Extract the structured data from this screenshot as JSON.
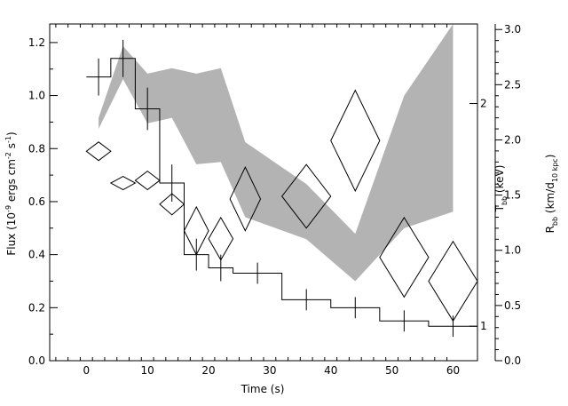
{
  "chart_data": {
    "type": "line",
    "xlabel": "Time (s)",
    "ylabel_parts": {
      "a": "Flux (10",
      "a_sup": "-9",
      "b": " ergs cm",
      "b_sup": "-2",
      "c": " s",
      "c_sup": "-1",
      "d": ")"
    },
    "t_label": {
      "main": "T",
      "sub": "bb",
      "rest": " (keV)"
    },
    "r_label": {
      "main": "R",
      "sub": "bb",
      "mid": " (km/d",
      "sub2": "10 kpc",
      "end": ")"
    },
    "xlim": [
      -6,
      64
    ],
    "ylim": [
      0,
      1.27
    ],
    "x_ticks": [
      "0",
      "10",
      "20",
      "30",
      "40",
      "50",
      "60"
    ],
    "x_tick_values": [
      0,
      10,
      20,
      30,
      40,
      50,
      60
    ],
    "y_ticks": [
      "0.0",
      "0.2",
      "0.4",
      "0.6",
      "0.8",
      "1.0",
      "1.2"
    ],
    "y_tick_values": [
      0,
      0.2,
      0.4,
      0.6,
      0.8,
      1.0,
      1.2
    ],
    "r_axis": {
      "lim": [
        0,
        3.05
      ],
      "ticks": [
        "0.0",
        "0.5",
        "1.0",
        "1.5",
        "2.0",
        "2.5",
        "3.0"
      ],
      "tick_values": [
        0,
        0.5,
        1.0,
        1.5,
        2.0,
        2.5,
        3.0
      ]
    },
    "t_axis": {
      "ticks": [
        "1",
        "2"
      ],
      "tick_values": [
        1,
        2
      ],
      "flux_equiv": [
        0.13,
        0.97
      ]
    },
    "flux": {
      "bins": [
        {
          "x0": 0,
          "x1": 4,
          "y": 1.07,
          "err": 0.07
        },
        {
          "x0": 4,
          "x1": 8,
          "y": 1.14,
          "err": 0.07
        },
        {
          "x0": 8,
          "x1": 12,
          "y": 0.95,
          "err": 0.08
        },
        {
          "x0": 12,
          "x1": 16,
          "y": 0.67,
          "err": 0.07
        },
        {
          "x0": 16,
          "x1": 20,
          "y": 0.4,
          "err": 0.06
        },
        {
          "x0": 20,
          "x1": 24,
          "y": 0.35,
          "err": 0.05
        },
        {
          "x0": 24,
          "x1": 32,
          "y": 0.33,
          "err": 0.04
        },
        {
          "x0": 32,
          "x1": 40,
          "y": 0.23,
          "err": 0.04
        },
        {
          "x0": 40,
          "x1": 48,
          "y": 0.2,
          "err": 0.04
        },
        {
          "x0": 48,
          "x1": 56,
          "y": 0.15,
          "err": 0.04
        },
        {
          "x0": 56,
          "x1": 64,
          "y": 0.13,
          "err": 0.04
        }
      ]
    },
    "temperature_diamonds": [
      {
        "x": 2,
        "y": 0.79,
        "dx": 2,
        "dy": 0.035
      },
      {
        "x": 6,
        "y": 0.67,
        "dx": 2,
        "dy": 0.025
      },
      {
        "x": 10,
        "y": 0.68,
        "dx": 2,
        "dy": 0.035
      },
      {
        "x": 14,
        "y": 0.59,
        "dx": 2,
        "dy": 0.04
      },
      {
        "x": 18,
        "y": 0.49,
        "dx": 2,
        "dy": 0.09
      },
      {
        "x": 22,
        "y": 0.46,
        "dx": 2,
        "dy": 0.08
      },
      {
        "x": 26,
        "y": 0.61,
        "dx": 2.5,
        "dy": 0.12
      },
      {
        "x": 36,
        "y": 0.62,
        "dx": 4,
        "dy": 0.12
      },
      {
        "x": 44,
        "y": 0.83,
        "dx": 4,
        "dy": 0.19
      },
      {
        "x": 52,
        "y": 0.39,
        "dx": 4,
        "dy": 0.15
      },
      {
        "x": 60,
        "y": 0.3,
        "dx": 4,
        "dy": 0.15
      }
    ],
    "radius_band": {
      "x": [
        2,
        6,
        10,
        14,
        18,
        22,
        26,
        36,
        44,
        52,
        60
      ],
      "upper": [
        2.2,
        2.85,
        2.6,
        2.65,
        2.6,
        2.65,
        1.98,
        1.6,
        1.15,
        2.4,
        3.05
      ],
      "lower": [
        2.1,
        2.55,
        2.15,
        2.2,
        1.78,
        1.8,
        1.3,
        1.1,
        0.72,
        1.2,
        1.35
      ]
    }
  }
}
